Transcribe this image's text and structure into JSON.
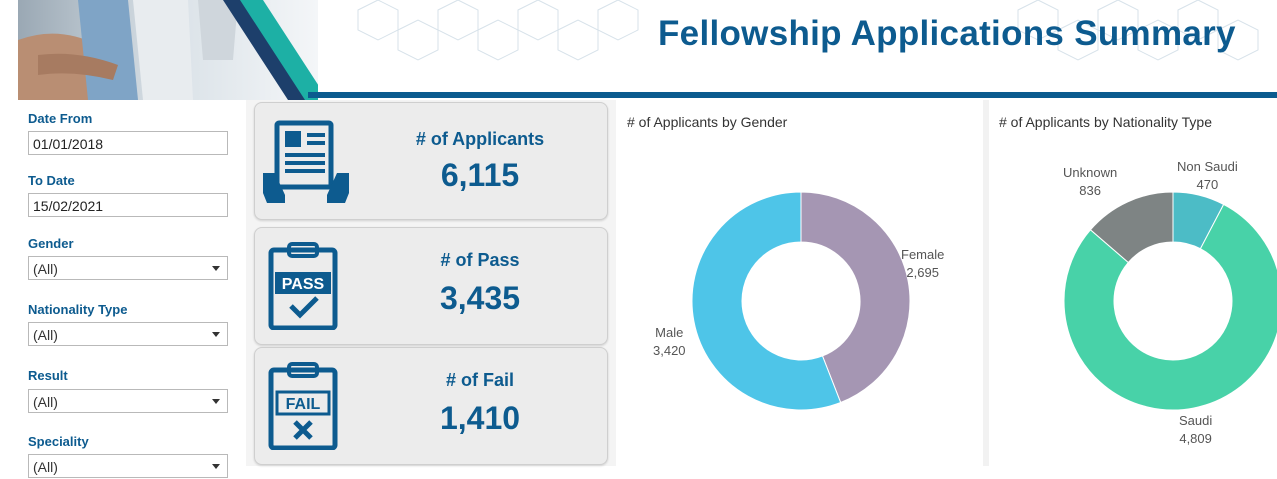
{
  "header": {
    "title": "Fellowship Applications Summary"
  },
  "filters": {
    "date_from": {
      "label": "Date From",
      "value": "01/01/2018"
    },
    "to_date": {
      "label": "To Date",
      "value": "15/02/2021"
    },
    "gender": {
      "label": "Gender",
      "value": "(All)"
    },
    "nationality_type": {
      "label": "Nationality Type",
      "value": "(All)"
    },
    "result": {
      "label": "Result",
      "value": "(All)"
    },
    "speciality": {
      "label": "Speciality",
      "value": "(All)"
    }
  },
  "kpis": {
    "applicants": {
      "label": "# of  Applicants",
      "value": "6,115",
      "icon": "applicant-form-icon"
    },
    "pass": {
      "label": "# of Pass",
      "value": "3,435",
      "icon": "pass-clipboard-icon",
      "icon_text": "PASS"
    },
    "fail": {
      "label": "# of Fail",
      "value": "1,410",
      "icon": "fail-clipboard-icon",
      "icon_text": "FAIL"
    }
  },
  "colors": {
    "brand_blue": "#0d5b8f",
    "male": "#4ec5e8",
    "female": "#a596b3",
    "saudi": "#48d2a8",
    "non_saudi": "#4cbcc6",
    "unknown": "#7e8484"
  },
  "chart_data": [
    {
      "type": "pie",
      "title": "# of Applicants by Gender",
      "donut": true,
      "slices": [
        {
          "name": "Female",
          "value": 2695,
          "label": "2,695",
          "color": "#a596b3"
        },
        {
          "name": "Male",
          "value": 3420,
          "label": "3,420",
          "color": "#4ec5e8"
        }
      ]
    },
    {
      "type": "pie",
      "title": "# of Applicants by Nationality Type",
      "donut": true,
      "slices": [
        {
          "name": "Non Saudi",
          "value": 470,
          "label": "470",
          "color": "#4cbcc6"
        },
        {
          "name": "Saudi",
          "value": 4809,
          "label": "4,809",
          "color": "#48d2a8"
        },
        {
          "name": "Unknown",
          "value": 836,
          "label": "836",
          "color": "#7e8484"
        }
      ]
    }
  ]
}
